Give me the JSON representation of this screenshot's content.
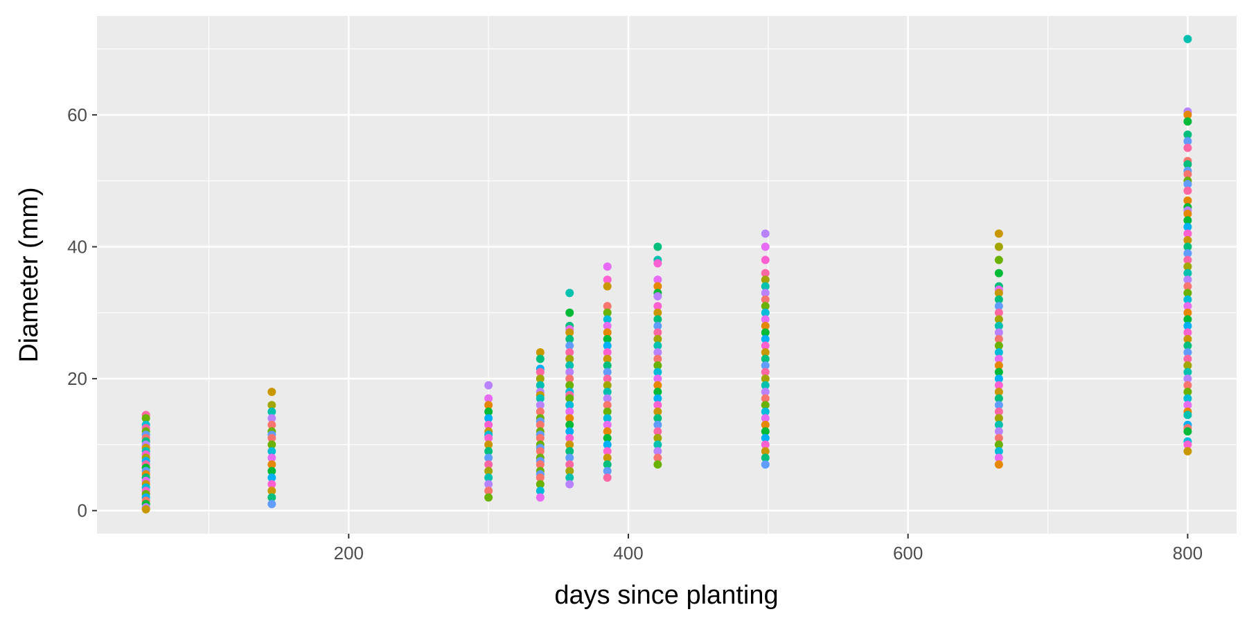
{
  "chart_data": {
    "type": "scatter",
    "xlabel": "days since planting",
    "ylabel": "Diameter (mm)",
    "xlim": [
      20,
      835
    ],
    "ylim": [
      -3.5,
      75
    ],
    "x_ticks": [
      200,
      400,
      600,
      800
    ],
    "x_tick_labels": [
      "200",
      "400",
      "600",
      "800"
    ],
    "x_minor_ticks": [
      100,
      300,
      500,
      700
    ],
    "y_ticks": [
      0,
      20,
      40,
      60
    ],
    "y_tick_labels": [
      "0",
      "20",
      "40",
      "60"
    ],
    "y_minor_ticks": [
      10,
      30,
      50,
      70
    ],
    "grid": true,
    "legend": "none",
    "point_colors": [
      "#F8766D",
      "#E58700",
      "#C99800",
      "#A3A500",
      "#6BB100",
      "#00BA38",
      "#00BF7D",
      "#00C0AF",
      "#00BCD8",
      "#00B0F6",
      "#619CFF",
      "#B983FF",
      "#E76BF3",
      "#FD61D1",
      "#FF67A4"
    ],
    "groups": [
      {
        "x": 55,
        "y": [
          14.5,
          14,
          13,
          12.5,
          12,
          11.5,
          11,
          10.5,
          10,
          9.5,
          9,
          8.5,
          8,
          7.5,
          7,
          6.5,
          6,
          5.5,
          5,
          4.5,
          4,
          3.5,
          3,
          2.5,
          2,
          1.5,
          1,
          0.5,
          0.2
        ]
      },
      {
        "x": 145,
        "y": [
          18,
          16,
          15,
          14,
          13,
          12,
          11.5,
          11,
          10,
          9,
          8,
          7,
          6,
          5,
          4,
          3,
          2,
          1
        ]
      },
      {
        "x": 300,
        "y": [
          19,
          17,
          16,
          15,
          14,
          13,
          12,
          11.5,
          11,
          10,
          9,
          8,
          7,
          6,
          5,
          4,
          3,
          2
        ]
      },
      {
        "x": 337,
        "y": [
          24,
          23,
          21.5,
          21,
          20,
          19,
          18,
          17.5,
          17,
          16,
          15,
          14,
          13.5,
          13,
          12,
          11.5,
          11,
          10,
          9.5,
          9,
          8,
          7.5,
          7,
          6,
          5.5,
          5,
          4,
          3,
          2
        ]
      },
      {
        "x": 358,
        "y": [
          33,
          30,
          28,
          27.5,
          27,
          26,
          25,
          24,
          23,
          22,
          21,
          20,
          19,
          18,
          17.5,
          17,
          16,
          15,
          14,
          13,
          12,
          11,
          10,
          9,
          8,
          7,
          6,
          5,
          4
        ]
      },
      {
        "x": 385,
        "y": [
          37,
          35,
          34,
          31,
          30,
          29,
          28,
          27,
          26,
          25,
          24,
          23,
          22,
          21,
          20,
          19,
          18,
          17,
          16,
          15,
          14,
          13,
          12,
          11,
          10,
          9,
          8,
          7,
          6,
          5
        ]
      },
      {
        "x": 421,
        "y": [
          40,
          38,
          37.5,
          35,
          34,
          33,
          32.5,
          31,
          30,
          29,
          28,
          27,
          26,
          25,
          24,
          23,
          22,
          21,
          20,
          19,
          18,
          17,
          16,
          15,
          14,
          13,
          12,
          11,
          10,
          9,
          8,
          7
        ]
      },
      {
        "x": 498,
        "y": [
          42,
          40,
          38,
          36,
          35,
          34,
          33,
          32,
          31,
          30,
          29,
          28,
          27,
          26,
          25,
          24,
          23,
          22,
          21,
          20,
          19,
          18,
          17,
          16,
          15,
          14,
          13,
          12,
          11,
          10,
          9,
          8,
          7
        ]
      },
      {
        "x": 665,
        "y": [
          42,
          40,
          38,
          36,
          34,
          33.5,
          33,
          32,
          31,
          30,
          29,
          28,
          27,
          26,
          25,
          24,
          23,
          22,
          21,
          20,
          19,
          18,
          17,
          16,
          15,
          14,
          13,
          12,
          11,
          10,
          9,
          8,
          7
        ]
      },
      {
        "x": 800,
        "y": [
          71.5,
          60.5,
          60,
          59,
          57,
          56,
          55,
          53,
          52.5,
          51.5,
          51,
          50,
          49.5,
          48.5,
          47,
          46,
          45.5,
          45,
          44,
          43,
          42,
          41,
          40,
          39,
          38,
          37,
          36,
          35,
          34,
          33,
          32,
          31,
          30,
          29,
          28,
          27,
          26,
          25,
          24,
          23,
          22,
          21,
          20,
          19,
          18,
          17,
          16,
          15,
          14.5,
          13,
          12.5,
          12,
          10.5,
          10,
          9
        ]
      }
    ]
  }
}
